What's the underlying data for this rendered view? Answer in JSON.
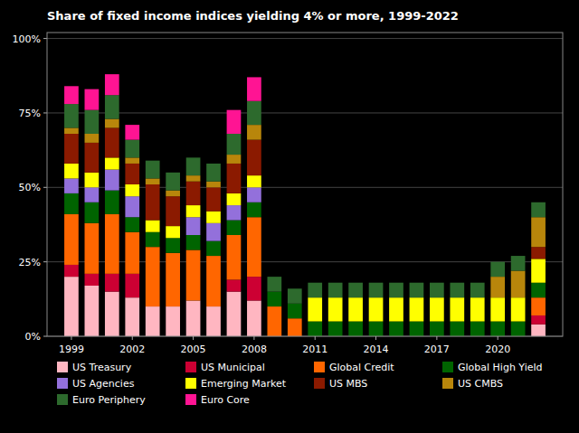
{
  "chart_data": {
    "type": "bar",
    "stacked": true,
    "title": "Share of fixed income indices yielding 4% or more, 1999-2022",
    "x": [
      1999,
      2000,
      2001,
      2002,
      2003,
      2004,
      2005,
      2006,
      2007,
      2008,
      2009,
      2010,
      2011,
      2012,
      2013,
      2014,
      2015,
      2016,
      2017,
      2018,
      2019,
      2020,
      2021,
      2022
    ],
    "xlim": [
      1997.8,
      2023.2
    ],
    "xticks": [
      1999,
      2002,
      2005,
      2008,
      2011,
      2014,
      2017,
      2020
    ],
    "ylim": [
      0,
      1.02
    ],
    "yticks": [
      {
        "value": 0,
        "label": "0%"
      },
      {
        "value": 0.25,
        "label": "25%"
      },
      {
        "value": 0.5,
        "label": "50%"
      },
      {
        "value": 0.75,
        "label": "75%"
      },
      {
        "value": 1.0,
        "label": "100%"
      }
    ],
    "grid": true,
    "legend": "bottom",
    "series": [
      {
        "name": "US Treasury",
        "color": "#ffb6c1",
        "values": [
          0.2,
          0.17,
          0.15,
          0.13,
          0.1,
          0.1,
          0.12,
          0.1,
          0.15,
          0.12,
          0.0,
          0.0,
          0.0,
          0.0,
          0.0,
          0.0,
          0.0,
          0.0,
          0.0,
          0.0,
          0.0,
          0.0,
          0.0,
          0.04
        ]
      },
      {
        "name": "US Municipal",
        "color": "#cc0033",
        "values": [
          0.04,
          0.04,
          0.06,
          0.08,
          0.0,
          0.0,
          0.0,
          0.0,
          0.04,
          0.08,
          0.0,
          0.0,
          0.0,
          0.0,
          0.0,
          0.0,
          0.0,
          0.0,
          0.0,
          0.0,
          0.0,
          0.0,
          0.0,
          0.03
        ]
      },
      {
        "name": "Global Credit",
        "color": "#ff6600",
        "values": [
          0.17,
          0.17,
          0.2,
          0.14,
          0.2,
          0.18,
          0.17,
          0.17,
          0.15,
          0.2,
          0.1,
          0.06,
          0.0,
          0.0,
          0.0,
          0.0,
          0.0,
          0.0,
          0.0,
          0.0,
          0.0,
          0.0,
          0.0,
          0.06
        ]
      },
      {
        "name": "Global High Yield",
        "color": "#006400",
        "values": [
          0.07,
          0.07,
          0.08,
          0.05,
          0.05,
          0.05,
          0.05,
          0.05,
          0.05,
          0.05,
          0.05,
          0.05,
          0.05,
          0.05,
          0.05,
          0.05,
          0.05,
          0.05,
          0.05,
          0.05,
          0.05,
          0.05,
          0.05,
          0.05
        ]
      },
      {
        "name": "US Agencies",
        "color": "#9370db",
        "values": [
          0.05,
          0.05,
          0.07,
          0.07,
          0.0,
          0.0,
          0.06,
          0.06,
          0.05,
          0.05,
          0.0,
          0.0,
          0.0,
          0.0,
          0.0,
          0.0,
          0.0,
          0.0,
          0.0,
          0.0,
          0.0,
          0.0,
          0.0,
          0.0
        ]
      },
      {
        "name": "Emerging Market",
        "color": "#ffff00",
        "values": [
          0.05,
          0.05,
          0.04,
          0.04,
          0.04,
          0.04,
          0.04,
          0.04,
          0.04,
          0.04,
          0.0,
          0.0,
          0.08,
          0.08,
          0.08,
          0.08,
          0.08,
          0.08,
          0.08,
          0.08,
          0.08,
          0.08,
          0.08,
          0.08
        ]
      },
      {
        "name": "US MBS",
        "color": "#8b1a00",
        "values": [
          0.1,
          0.1,
          0.1,
          0.07,
          0.12,
          0.1,
          0.08,
          0.08,
          0.1,
          0.12,
          0.0,
          0.0,
          0.0,
          0.0,
          0.0,
          0.0,
          0.0,
          0.0,
          0.0,
          0.0,
          0.0,
          0.0,
          0.0,
          0.04
        ]
      },
      {
        "name": "US CMBS",
        "color": "#b8860b",
        "values": [
          0.02,
          0.03,
          0.03,
          0.02,
          0.02,
          0.02,
          0.02,
          0.02,
          0.03,
          0.05,
          0.0,
          0.0,
          0.0,
          0.0,
          0.0,
          0.0,
          0.0,
          0.0,
          0.0,
          0.0,
          0.0,
          0.07,
          0.09,
          0.1
        ]
      },
      {
        "name": "Euro Periphery",
        "color": "#2d6a2d",
        "values": [
          0.08,
          0.08,
          0.08,
          0.06,
          0.06,
          0.06,
          0.06,
          0.06,
          0.07,
          0.08,
          0.05,
          0.05,
          0.05,
          0.05,
          0.05,
          0.05,
          0.05,
          0.05,
          0.05,
          0.05,
          0.05,
          0.05,
          0.05,
          0.05
        ]
      },
      {
        "name": "Euro Core",
        "color": "#ff1493",
        "values": [
          0.06,
          0.07,
          0.07,
          0.05,
          0.0,
          0.0,
          0.0,
          0.0,
          0.08,
          0.08,
          0.0,
          0.0,
          0.0,
          0.0,
          0.0,
          0.0,
          0.0,
          0.0,
          0.0,
          0.0,
          0.0,
          0.0,
          0.0,
          0.0
        ]
      }
    ]
  }
}
